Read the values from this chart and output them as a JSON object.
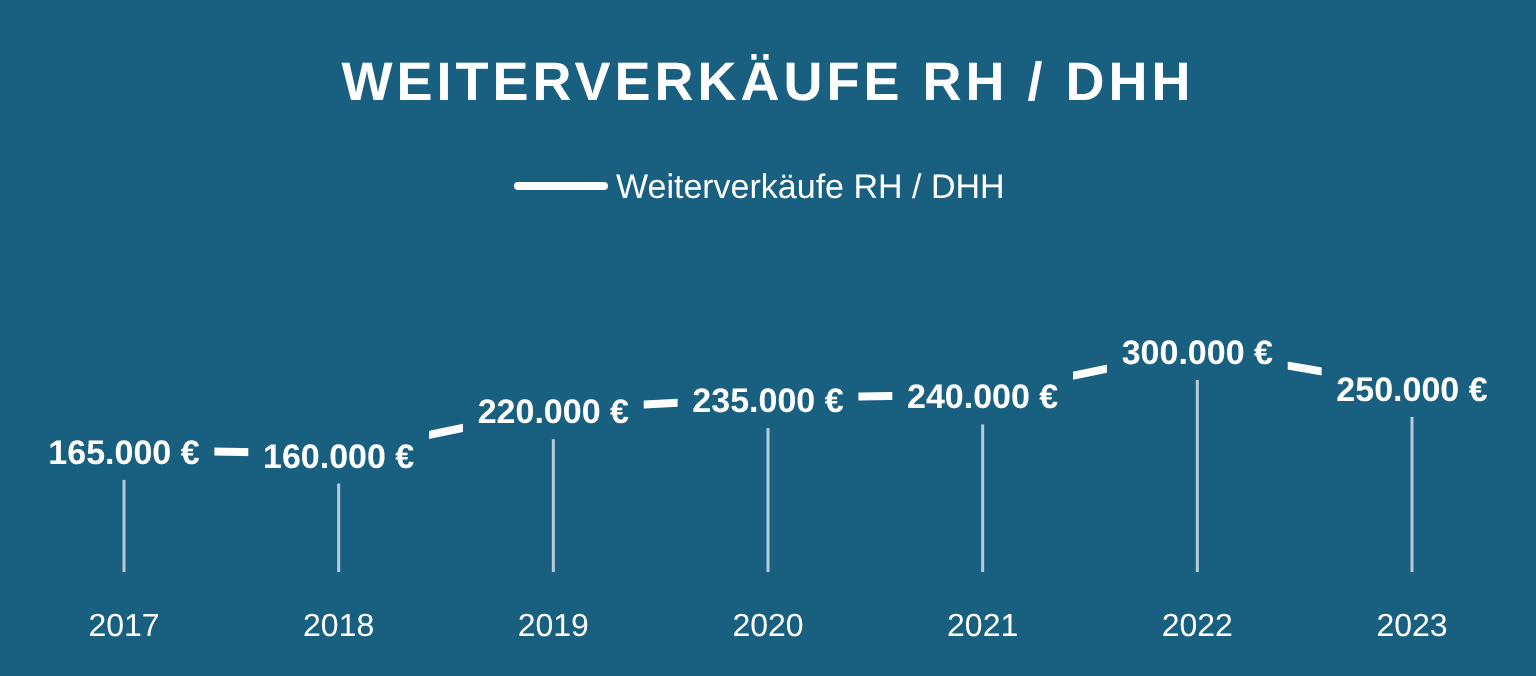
{
  "chart_data": {
    "type": "line",
    "title": "WEITERVERKÄUFE RH / DHH",
    "categories": [
      "2017",
      "2018",
      "2019",
      "2020",
      "2021",
      "2022",
      "2023"
    ],
    "series": [
      {
        "name": "Weiterverkäufe RH / DHH",
        "color": "#ffffff",
        "values": [
          165000,
          160000,
          220000,
          235000,
          240000,
          300000,
          250000
        ],
        "value_labels": [
          "165.000 €",
          "160.000 €",
          "220.000 €",
          "235.000 €",
          "240.000 €",
          "300.000 €",
          "250.000 €"
        ]
      }
    ],
    "legend": "top",
    "grid": "x",
    "line_style": "solid"
  }
}
